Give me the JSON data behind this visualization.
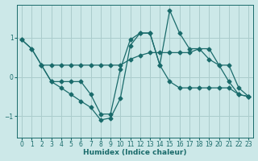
{
  "xlabel": "Humidex (Indice chaleur)",
  "bg_color": "#cce8e8",
  "grid_color": "#aacccc",
  "line_color": "#1a6b6b",
  "xlim": [
    -0.5,
    23.5
  ],
  "ylim": [
    -1.55,
    1.85
  ],
  "yticks": [
    -1,
    0,
    1
  ],
  "xticks": [
    0,
    1,
    2,
    3,
    4,
    5,
    6,
    7,
    8,
    9,
    10,
    11,
    12,
    13,
    14,
    15,
    16,
    17,
    18,
    19,
    20,
    21,
    22,
    23
  ],
  "series1_x": [
    0,
    1,
    2,
    3,
    4,
    5,
    6,
    7,
    8,
    9,
    10,
    11,
    12,
    13,
    14,
    15,
    16,
    17,
    18,
    19,
    20,
    21,
    22,
    23
  ],
  "series1_y": [
    0.95,
    0.72,
    0.3,
    0.3,
    0.3,
    0.3,
    0.3,
    0.3,
    0.3,
    0.3,
    0.3,
    0.45,
    0.55,
    0.62,
    0.62,
    0.62,
    0.62,
    0.62,
    0.72,
    0.45,
    0.3,
    0.3,
    -0.28,
    -0.5
  ],
  "series2_x": [
    0,
    1,
    2,
    3,
    4,
    5,
    6,
    7,
    8,
    9,
    10,
    11,
    12,
    13,
    14,
    15,
    16,
    17,
    18,
    19,
    20,
    21,
    22,
    23
  ],
  "series2_y": [
    0.95,
    0.72,
    0.3,
    -0.12,
    -0.28,
    -0.45,
    -0.62,
    -0.78,
    -1.1,
    -1.05,
    -0.55,
    0.8,
    1.12,
    1.12,
    0.3,
    1.7,
    1.12,
    0.72,
    0.72,
    0.72,
    0.3,
    -0.12,
    -0.45,
    -0.5
  ],
  "series3_x": [
    2,
    3,
    4,
    5,
    6,
    7,
    8,
    9,
    10,
    11,
    12,
    13,
    14,
    15,
    16,
    17,
    18,
    19,
    20,
    21,
    22,
    23
  ],
  "series3_y": [
    0.3,
    -0.12,
    -0.12,
    -0.12,
    -0.12,
    -0.45,
    -0.95,
    -0.95,
    0.2,
    0.95,
    1.12,
    1.12,
    0.3,
    -0.12,
    -0.28,
    -0.28,
    -0.28,
    -0.28,
    -0.28,
    -0.28,
    -0.45,
    -0.5
  ]
}
